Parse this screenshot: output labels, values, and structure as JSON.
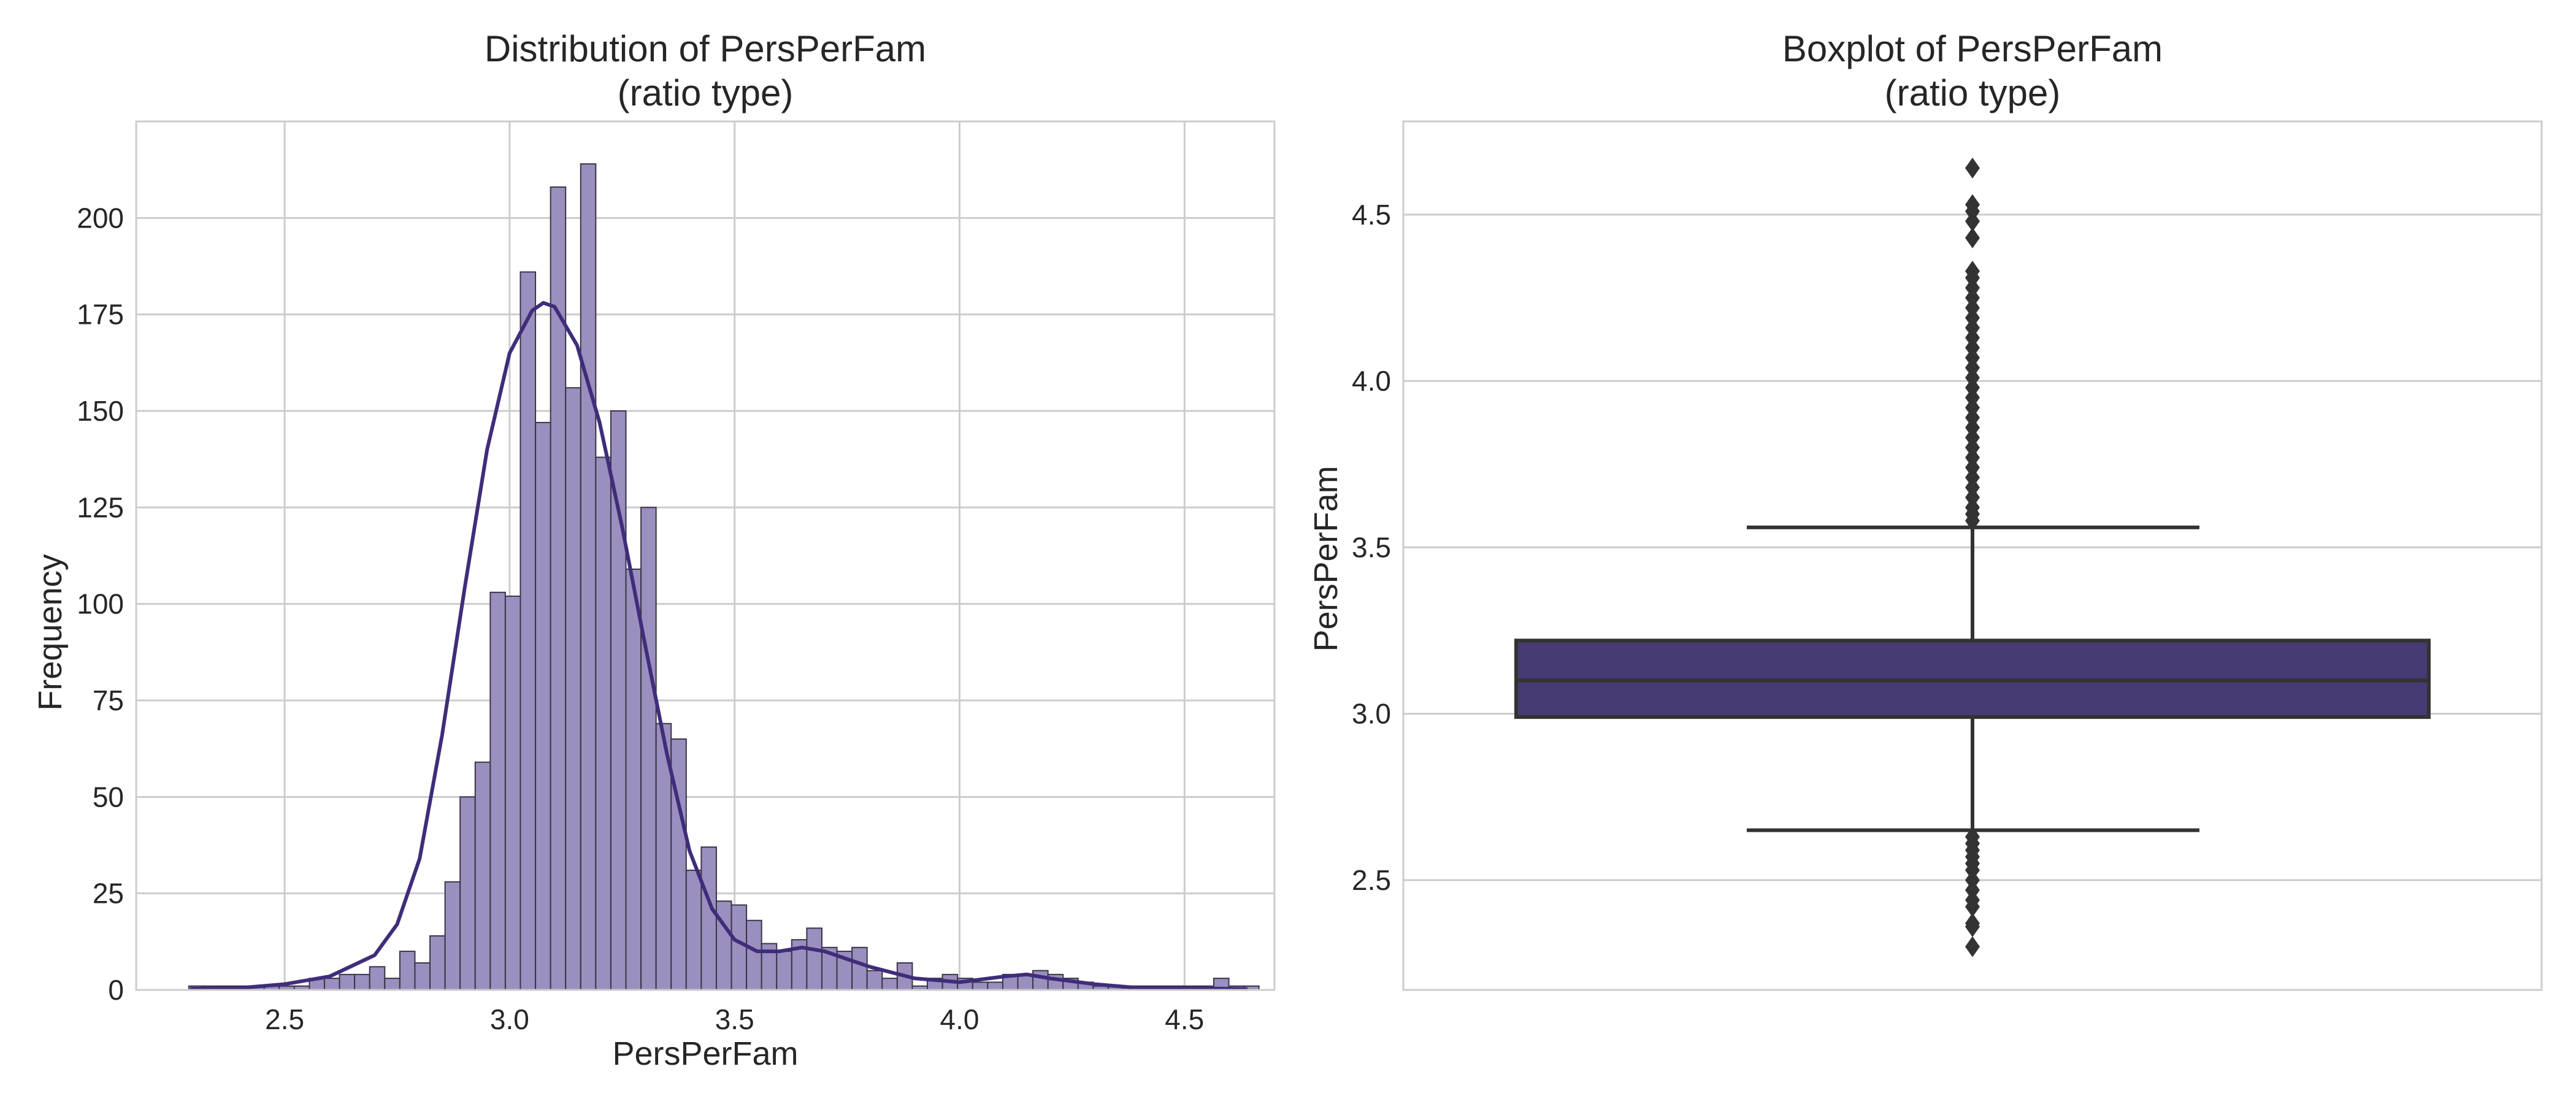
{
  "chart_data": [
    {
      "type": "bar",
      "subtype": "histogram",
      "title": "Distribution of PersPerFam\n(ratio type)",
      "xlabel": "PersPerFam",
      "ylabel": "Frequency",
      "xlim": [
        2.17,
        4.7
      ],
      "ylim": [
        0,
        225
      ],
      "xticks": [
        2.5,
        3.0,
        3.5,
        4.0,
        4.5
      ],
      "yticks": [
        0,
        25,
        50,
        75,
        100,
        125,
        150,
        175,
        200
      ],
      "grid": true,
      "bar_color": "#9a8fbe",
      "edge_color": "#3a3547",
      "kde_color": "#3f2d7a",
      "bin_start": 2.287,
      "bin_width": 0.0335,
      "values": [
        1,
        1,
        1,
        1,
        1,
        1,
        1,
        1,
        3,
        3,
        4,
        4,
        6,
        3,
        10,
        7,
        14,
        28,
        50,
        59,
        103,
        102,
        186,
        147,
        208,
        156,
        214,
        138,
        150,
        109,
        125,
        69,
        65,
        31,
        37,
        23,
        22,
        18,
        12,
        10,
        13,
        16,
        11,
        10,
        11,
        5,
        3,
        7,
        1,
        3,
        4,
        3,
        2,
        2,
        4,
        4,
        5,
        4,
        3,
        2,
        1,
        1,
        1,
        1,
        1,
        1,
        1,
        1,
        3,
        1,
        1
      ],
      "kde_x": [
        2.29,
        2.4,
        2.5,
        2.6,
        2.7,
        2.75,
        2.8,
        2.85,
        2.9,
        2.95,
        3.0,
        3.05,
        3.075,
        3.1,
        3.15,
        3.2,
        3.25,
        3.3,
        3.35,
        3.4,
        3.45,
        3.5,
        3.55,
        3.6,
        3.65,
        3.7,
        3.8,
        3.9,
        4.0,
        4.1,
        4.15,
        4.2,
        4.3,
        4.4,
        4.5,
        4.64
      ],
      "kde_y": [
        0.3,
        0.5,
        1.5,
        3.5,
        9,
        17,
        34,
        66,
        104,
        140,
        165,
        176,
        178,
        177,
        167,
        147,
        120,
        90,
        61,
        36,
        21,
        13,
        10,
        10,
        11,
        10,
        6,
        3,
        2,
        3.5,
        4,
        3,
        1.5,
        0.5,
        0.5,
        0.2
      ]
    },
    {
      "type": "boxplot",
      "title": "Boxplot of PersPerFam\n(ratio type)",
      "xlabel": "",
      "ylabel": "PersPerFam",
      "ylim": [
        2.17,
        4.78
      ],
      "yticks": [
        2.5,
        3.0,
        3.5,
        4.0,
        4.5
      ],
      "grid": true,
      "box_color": "#483a72",
      "line_color": "#333333",
      "q1": 2.99,
      "median": 3.1,
      "q3": 3.22,
      "whisker_low": 2.65,
      "whisker_high": 3.56,
      "outliers": [
        4.64,
        4.53,
        4.51,
        4.48,
        4.43,
        4.33,
        4.31,
        4.28,
        4.25,
        4.22,
        4.19,
        4.16,
        4.13,
        4.1,
        4.07,
        4.04,
        4.01,
        3.98,
        3.95,
        3.92,
        3.89,
        3.86,
        3.83,
        3.8,
        3.77,
        3.74,
        3.71,
        3.68,
        3.65,
        3.62,
        3.6,
        3.58,
        2.63,
        2.61,
        2.59,
        2.57,
        2.55,
        2.53,
        2.5,
        2.47,
        2.44,
        2.42,
        2.37,
        2.36,
        2.3
      ]
    }
  ]
}
